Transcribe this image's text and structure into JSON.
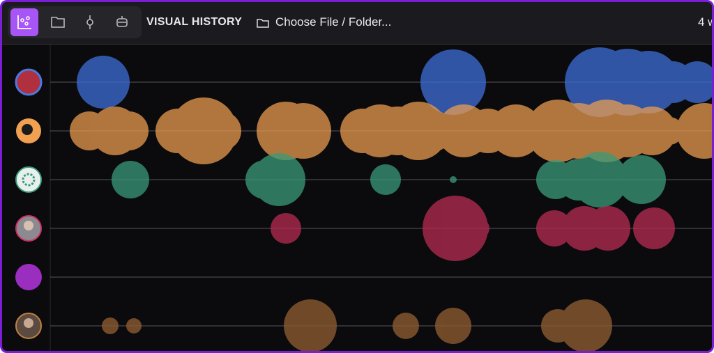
{
  "toolbar": {
    "title": "VISUAL HISTORY",
    "open_button": "Choose File / Folder...",
    "status": "4 w"
  }
}
